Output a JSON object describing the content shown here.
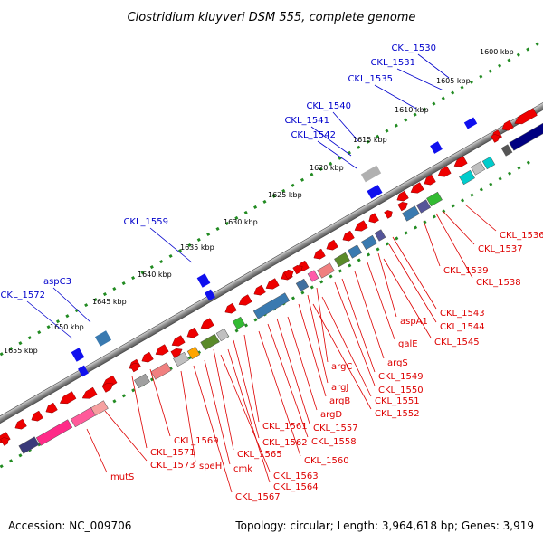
{
  "title": "Clostridium kluyveri DSM 555, complete genome",
  "footer": {
    "accession": "Accession: NC_009706",
    "stats": "Topology: circular; Length: 3,964,618 bp; Genes: 3,919"
  },
  "kbp_ticks": [
    "1655 kbp",
    "1650 kbp",
    "1645 kbp",
    "1640 kbp",
    "1635 kbp",
    "1630 kbp",
    "1625 kbp",
    "1620 kbp",
    "1615 kbp",
    "1610 kbp",
    "1605 kbp",
    "1600 kbp"
  ],
  "top_labels": [
    "CKL_1530",
    "CKL_1531",
    "CKL_1535",
    "CKL_1540",
    "CKL_1541",
    "CKL_1542",
    "CKL_1559",
    "aspC3",
    "CKL_1572"
  ],
  "bottom_labels": [
    "CKL_1536",
    "CKL_1537",
    "CKL_1539",
    "CKL_1538",
    "CKL_1543",
    "CKL_1544",
    "aspA1",
    "CKL_1545",
    "galE",
    "argS",
    "CKL_1549",
    "CKL_1550",
    "argC",
    "argJ",
    "CKL_1551",
    "argB",
    "CKL_1552",
    "argD",
    "CKL_1557",
    "CKL_1561",
    "CKL_1558",
    "CKL_1562",
    "CKL_1560",
    "CKL_1565",
    "CKL_1569",
    "CKL_1563",
    "CKL_1571",
    "CKL_1564",
    "cmk",
    "speH",
    "CKL_1573",
    "CKL_1567",
    "mutS"
  ],
  "colors": {
    "label_top": "#0000cc",
    "label_bottom": "#dd0000",
    "tick": "#228b22",
    "backbone": "#808080"
  }
}
